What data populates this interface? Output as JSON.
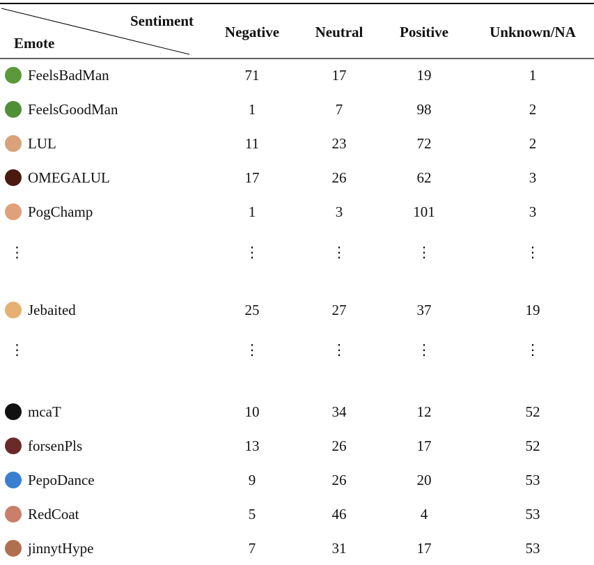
{
  "table": {
    "corner": {
      "column_header": "Sentiment",
      "row_header": "Emote"
    },
    "columns": [
      "Negative",
      "Neutral",
      "Positive",
      "Unknown/NA"
    ],
    "rows": [
      {
        "emote": "FeelsBadMan",
        "values": [
          71,
          17,
          19,
          1
        ]
      },
      {
        "emote": "FeelsGoodMan",
        "values": [
          1,
          7,
          98,
          2
        ]
      },
      {
        "emote": "LUL",
        "values": [
          11,
          23,
          72,
          2
        ]
      },
      {
        "emote": "OMEGALUL",
        "values": [
          17,
          26,
          62,
          3
        ]
      },
      {
        "emote": "PogChamp",
        "values": [
          1,
          3,
          101,
          3
        ]
      },
      {
        "emote": "⋮",
        "values": [
          "⋮",
          "⋮",
          "⋮",
          "⋮"
        ]
      },
      {
        "emote": "Jebaited",
        "values": [
          25,
          27,
          37,
          19
        ]
      },
      {
        "emote": "⋮",
        "values": [
          "⋮",
          "⋮",
          "⋮",
          "⋮"
        ]
      },
      {
        "emote": "mcaT",
        "values": [
          10,
          34,
          12,
          52
        ]
      },
      {
        "emote": "forsenPls",
        "values": [
          13,
          26,
          17,
          52
        ]
      },
      {
        "emote": "PepoDance",
        "values": [
          9,
          26,
          20,
          53
        ]
      },
      {
        "emote": "RedCoat",
        "values": [
          5,
          46,
          4,
          53
        ]
      },
      {
        "emote": "jinnytHype",
        "values": [
          7,
          31,
          17,
          53
        ]
      }
    ]
  }
}
